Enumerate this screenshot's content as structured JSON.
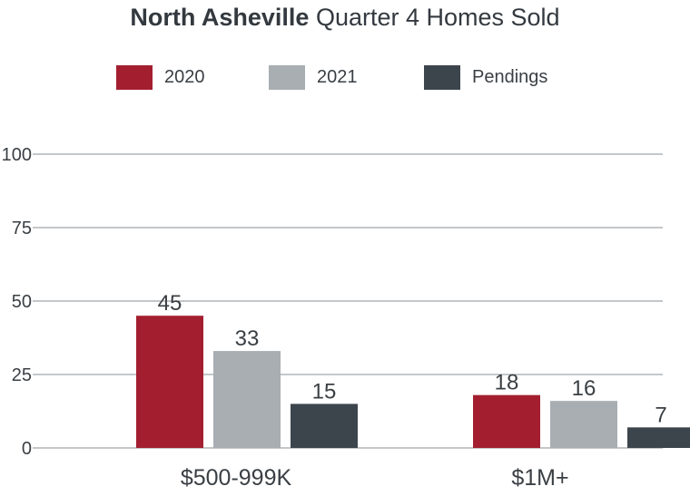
{
  "title": {
    "strong": "North Asheville",
    "rest": " Quarter 4 Homes Sold"
  },
  "colors": {
    "2020": "#a31f30",
    "2021": "#a8aeb2",
    "Pendings": "#3d454c",
    "grid": "#8a8f94",
    "text": "#3a3f44"
  },
  "legend": [
    {
      "label": "2020",
      "color": "#a31f30"
    },
    {
      "label": "2021",
      "color": "#a8aeb2"
    },
    {
      "label": "Pendings",
      "color": "#3d454c"
    }
  ],
  "chart_data": {
    "type": "bar",
    "title": "North Asheville Quarter 4 Homes Sold",
    "categories": [
      "$500-999K",
      "$1M+"
    ],
    "series": [
      {
        "name": "2020",
        "values": [
          45,
          18
        ]
      },
      {
        "name": "2021",
        "values": [
          33,
          16
        ]
      },
      {
        "name": "Pendings",
        "values": [
          15,
          7
        ]
      }
    ],
    "data_labels": [
      [
        "45",
        "33",
        "15"
      ],
      [
        "18",
        "16",
        "7"
      ]
    ],
    "y_ticks": [
      "100",
      "75",
      "50",
      "25",
      "0"
    ],
    "y_tick_values": [
      100,
      75,
      50,
      25,
      0
    ],
    "ylim": [
      0,
      100
    ],
    "grid": true,
    "legend_position": "top"
  }
}
